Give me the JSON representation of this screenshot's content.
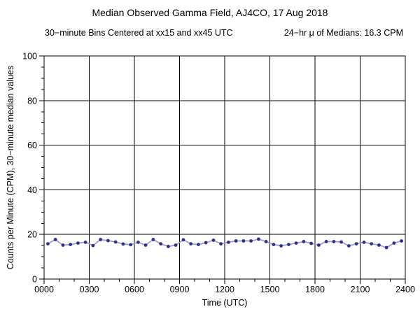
{
  "page": {
    "title": "Median Observed Gamma Field, AJ4CO, 17 Aug 2018",
    "subtitle_bins": "30−minute Bins Centered at xx15 and xx45 UTC",
    "subtitle_mean": "24−hr μ of Medians: 16.3 CPM"
  },
  "chart_data": {
    "type": "line",
    "title": "Median Observed Gamma Field, AJ4CO, 17 Aug 2018",
    "xlabel": "Time (UTC)",
    "ylabel": "Counts per Minute (CPM), 30−minute median values",
    "xlim_hours": [
      0,
      24
    ],
    "ylim": [
      0,
      100
    ],
    "grid": true,
    "legend": "none",
    "x_major_tick_labels": [
      "0000",
      "0300",
      "0600",
      "0900",
      "1200",
      "1500",
      "1800",
      "2100",
      "2400"
    ],
    "x_major_ticks_hours": [
      0,
      3,
      6,
      9,
      12,
      15,
      18,
      21,
      24
    ],
    "x_minor_step_hours": 1,
    "y_major_ticks": [
      0,
      20,
      40,
      60,
      80,
      100
    ],
    "y_minor_step": 5,
    "marker_color": "#30308c",
    "line_color": "#9a9ad0",
    "x_hours": [
      0.25,
      0.75,
      1.25,
      1.75,
      2.25,
      2.75,
      3.25,
      3.75,
      4.25,
      4.75,
      5.25,
      5.75,
      6.25,
      6.75,
      7.25,
      7.75,
      8.25,
      8.75,
      9.25,
      9.75,
      10.25,
      10.75,
      11.25,
      11.75,
      12.25,
      12.75,
      13.25,
      13.75,
      14.25,
      14.75,
      15.25,
      15.75,
      16.25,
      16.75,
      17.25,
      17.75,
      18.25,
      18.75,
      19.25,
      19.75,
      20.25,
      20.75,
      21.25,
      21.75,
      22.25,
      22.75,
      23.25,
      23.75
    ],
    "values": [
      15.8,
      17.7,
      15.2,
      15.5,
      16.1,
      16.5,
      15.0,
      17.7,
      17.2,
      16.6,
      15.7,
      15.4,
      16.5,
      15.2,
      17.7,
      15.8,
      14.6,
      15.2,
      17.6,
      15.8,
      15.5,
      16.3,
      17.4,
      15.8,
      16.5,
      17.1,
      17.1,
      17.1,
      17.9,
      16.8,
      15.5,
      14.9,
      15.5,
      16.1,
      16.8,
      16.0,
      15.2,
      16.8,
      16.8,
      16.6,
      14.9,
      15.8,
      16.5,
      15.8,
      15.2,
      14.1,
      16.1,
      17.1
    ]
  }
}
